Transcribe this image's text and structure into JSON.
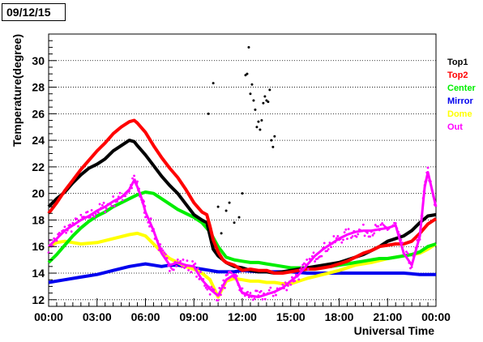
{
  "title": "09/12/15",
  "chart_data": {
    "type": "scatter",
    "title": "09/12/15",
    "xlabel": "Universal Time",
    "ylabel": "Temperature(degree)",
    "xlim": [
      0,
      24
    ],
    "ylim": [
      11.5,
      32
    ],
    "x_ticks": [
      0,
      3,
      6,
      9,
      12,
      15,
      18,
      21,
      24
    ],
    "x_tick_labels": [
      "00:00",
      "03:00",
      "06:00",
      "09:00",
      "12:00",
      "15:00",
      "18:00",
      "21:00",
      "00:00"
    ],
    "y_ticks": [
      12,
      14,
      16,
      18,
      20,
      22,
      24,
      26,
      28,
      30
    ],
    "y_tick_labels": [
      "12",
      "14",
      "16",
      "18",
      "20",
      "22",
      "24",
      "26",
      "28",
      "30"
    ],
    "grid": "horizontal dotted",
    "legend_position": "right",
    "series": [
      {
        "name": "Top1",
        "color": "#000000",
        "x": [
          0,
          0.5,
          1,
          1.5,
          2,
          2.5,
          3,
          3.5,
          4,
          4.5,
          5,
          5.3,
          5.5,
          6,
          6.5,
          7,
          7.5,
          8,
          8.5,
          9,
          9.5,
          9.8,
          10,
          10.2,
          10.5,
          10.8,
          11,
          11.5,
          12,
          12.5,
          13,
          13.5,
          14,
          14.5,
          15,
          15.5,
          16,
          16.5,
          17,
          17.5,
          18,
          18.5,
          19,
          19.5,
          20,
          20.5,
          21,
          21.5,
          22,
          22.5,
          23,
          23.5,
          24
        ],
        "y": [
          19,
          19.6,
          20.1,
          20.8,
          21.4,
          21.9,
          22.2,
          22.6,
          23.2,
          23.6,
          24,
          23.9,
          23.6,
          22.9,
          22.1,
          21.3,
          20.6,
          20,
          19.2,
          18.4,
          18,
          17.8,
          16.8,
          15.8,
          15.3,
          15,
          14.8,
          14.5,
          14.4,
          14.2,
          14.1,
          14.1,
          14,
          14.1,
          14.2,
          14.3,
          14.4,
          14.5,
          14.6,
          14.7,
          14.8,
          15,
          15.2,
          15.4,
          15.7,
          16,
          16.4,
          16.6,
          16.8,
          17.2,
          17.8,
          18.3,
          18.4
        ]
      },
      {
        "name": "Top2",
        "color": "#ff0000",
        "x": [
          0,
          0.5,
          1,
          1.5,
          2,
          2.5,
          3,
          3.5,
          4,
          4.5,
          5,
          5.3,
          5.5,
          6,
          6.5,
          7,
          7.5,
          8,
          8.5,
          9,
          9.5,
          9.8,
          10,
          10.2,
          10.5,
          10.8,
          11,
          11.5,
          12,
          12.5,
          13,
          13.5,
          14,
          14.5,
          15,
          15.5,
          16,
          16.5,
          17,
          17.5,
          18,
          18.5,
          19,
          19.5,
          20,
          20.5,
          21,
          21.5,
          22,
          22.5,
          23,
          23.5,
          24
        ],
        "y": [
          18.5,
          19.3,
          20.2,
          21,
          21.8,
          22.5,
          23.2,
          23.8,
          24.5,
          25,
          25.4,
          25.5,
          25.3,
          24.6,
          23.6,
          22.7,
          21.9,
          21.2,
          20.3,
          19.3,
          18.6,
          18.4,
          17.5,
          16.5,
          15.6,
          15,
          14.8,
          14.6,
          14.2,
          14.3,
          14.2,
          14.2,
          14,
          14,
          14.1,
          14.2,
          14.3,
          14.3,
          14.4,
          14.5,
          14.7,
          14.9,
          15.2,
          15.5,
          15.7,
          16,
          16.1,
          16.2,
          16.2,
          16.4,
          17,
          17.7,
          18.1
        ]
      },
      {
        "name": "Center",
        "color": "#00ee00",
        "x": [
          0,
          0.5,
          1,
          1.5,
          2,
          2.5,
          3,
          3.5,
          4,
          4.5,
          5,
          5.5,
          6,
          6.5,
          7,
          7.5,
          8,
          8.5,
          9,
          9.5,
          10,
          10.5,
          11,
          11.5,
          12,
          12.5,
          13,
          13.5,
          14,
          14.5,
          15,
          15.5,
          16,
          16.5,
          17,
          17.5,
          18,
          18.5,
          19,
          19.5,
          20,
          20.5,
          21,
          21.5,
          22,
          22.5,
          23,
          23.5,
          24
        ],
        "y": [
          14.8,
          15.4,
          16.1,
          16.8,
          17.4,
          17.9,
          18.3,
          18.6,
          19,
          19.3,
          19.6,
          19.9,
          20.1,
          20,
          19.6,
          19.2,
          18.8,
          18.5,
          18.2,
          17.8,
          17.1,
          16,
          15.2,
          15,
          14.9,
          14.8,
          14.8,
          14.7,
          14.6,
          14.5,
          14.4,
          14.4,
          14.4,
          14.4,
          14.5,
          14.5,
          14.6,
          14.7,
          14.8,
          14.9,
          15,
          15.1,
          15.1,
          15.2,
          15.3,
          15.4,
          15.6,
          16,
          16.2
        ]
      },
      {
        "name": "Mirror",
        "color": "#0000ee",
        "x": [
          0,
          1,
          2,
          3,
          4,
          5,
          5.5,
          6,
          6.5,
          7,
          7.5,
          8,
          8.5,
          9,
          9.5,
          10,
          10.5,
          11,
          11.5,
          12,
          13,
          14,
          15,
          16,
          17,
          18,
          19,
          20,
          21,
          22,
          23,
          24
        ],
        "y": [
          13.3,
          13.5,
          13.7,
          13.9,
          14.2,
          14.5,
          14.6,
          14.7,
          14.6,
          14.5,
          14.6,
          14.6,
          14.5,
          14.4,
          14.3,
          14.2,
          14.1,
          14.1,
          14.1,
          14.2,
          14.1,
          14.1,
          14.1,
          14,
          14,
          14,
          14,
          14,
          14,
          14,
          13.9,
          13.9
        ]
      },
      {
        "name": "Dome",
        "color": "#ffff00",
        "x": [
          0,
          0.5,
          1,
          1.5,
          2,
          3,
          4,
          5,
          5.5,
          6,
          6.5,
          7,
          7.5,
          8,
          8.5,
          9,
          9.5,
          10,
          10.5,
          11,
          11.5,
          12,
          12.5,
          13,
          13.5,
          14,
          14.5,
          15,
          15.5,
          16,
          17,
          18,
          19,
          20,
          21,
          22,
          23,
          23.5,
          24
        ],
        "y": [
          16,
          16.3,
          16.4,
          16.3,
          16.2,
          16.3,
          16.6,
          16.9,
          17,
          16.8,
          16.2,
          15.6,
          15.1,
          14.8,
          14.5,
          14.3,
          14,
          13.5,
          12.2,
          13.4,
          13.6,
          13.5,
          13.4,
          13.4,
          13.3,
          13.3,
          13.2,
          13.2,
          13.4,
          13.6,
          13.9,
          14.2,
          14.6,
          14.8,
          15.1,
          15.3,
          15.5,
          15.8,
          16.2
        ]
      },
      {
        "name": "Out",
        "color": "#ff00ff",
        "x": [
          0,
          0.5,
          1,
          1.5,
          2,
          2.5,
          3,
          3.5,
          4,
          4.5,
          5,
          5.3,
          5.5,
          5.8,
          6,
          6.5,
          7,
          7.5,
          8,
          8.5,
          9,
          9.5,
          10,
          10.5,
          11,
          11.5,
          12,
          12.5,
          13,
          13.5,
          14,
          14.5,
          15,
          15.5,
          16,
          16.5,
          17,
          17.5,
          18,
          18.5,
          19,
          19.5,
          20,
          20.5,
          21,
          21.5,
          22,
          22.5,
          23,
          23.3,
          23.5,
          24
        ],
        "y": [
          16,
          16.6,
          17.2,
          17.6,
          18,
          18.3,
          18.7,
          19,
          19.4,
          19.7,
          20.3,
          21,
          20.5,
          19.5,
          18.6,
          17.2,
          15.5,
          14.6,
          14.8,
          14.6,
          14.5,
          13.5,
          12.8,
          12.3,
          13.5,
          13.9,
          12.5,
          12.3,
          12.2,
          12.4,
          12.6,
          12.9,
          13.4,
          13.9,
          14.6,
          15.3,
          15.8,
          16.2,
          16.6,
          16.9,
          17.1,
          17.2,
          17.2,
          17.3,
          17.4,
          17.6,
          15.5,
          14.6,
          16.8,
          20.5,
          21.6,
          19
        ]
      },
      {
        "name": "Top1",
        "color": "#000000",
        "role": "scatter-outliers",
        "x": [
          9.9,
          10.2,
          10.5,
          10.7,
          11,
          11.2,
          11.5,
          11.8,
          12,
          12.2,
          12.3,
          12.4,
          12.5,
          12.6,
          12.7,
          12.8,
          12.9,
          13,
          13.1,
          13.2,
          13.3,
          13.4,
          13.5,
          13.6,
          13.7,
          13.8,
          13.9,
          14
        ],
        "y": [
          26,
          28.3,
          19,
          17,
          18.7,
          19.3,
          17.8,
          18.2,
          20,
          28.9,
          29,
          31,
          27.5,
          28.2,
          27,
          26.3,
          25,
          25.4,
          24.8,
          25.5,
          26.8,
          27.3,
          27,
          26.9,
          27.8,
          24,
          23.5,
          24.3
        ]
      }
    ]
  }
}
